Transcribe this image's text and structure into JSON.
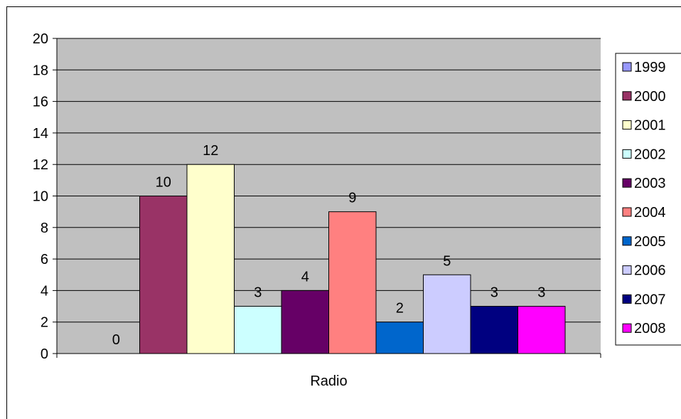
{
  "chart_data": {
    "type": "bar",
    "title": "",
    "xlabel": "",
    "ylabel": "",
    "categories": [
      "Radio"
    ],
    "ylim": [
      0,
      20
    ],
    "yticks": [
      0,
      2,
      4,
      6,
      8,
      10,
      12,
      14,
      16,
      18,
      20
    ],
    "grid": "horizontal",
    "legend_position": "right",
    "plot_background": "#c0c0c0",
    "series": [
      {
        "name": "1999",
        "values": [
          0
        ],
        "color": "#9999ff"
      },
      {
        "name": "2000",
        "values": [
          10
        ],
        "color": "#993366"
      },
      {
        "name": "2001",
        "values": [
          12
        ],
        "color": "#ffffcc"
      },
      {
        "name": "2002",
        "values": [
          3
        ],
        "color": "#ccffff"
      },
      {
        "name": "2003",
        "values": [
          4
        ],
        "color": "#660066"
      },
      {
        "name": "2004",
        "values": [
          9
        ],
        "color": "#ff8080"
      },
      {
        "name": "2005",
        "values": [
          2
        ],
        "color": "#0066cc"
      },
      {
        "name": "2006",
        "values": [
          5
        ],
        "color": "#ccccff"
      },
      {
        "name": "2007",
        "values": [
          3
        ],
        "color": "#000080"
      },
      {
        "name": "2008",
        "values": [
          3
        ],
        "color": "#ff00ff"
      }
    ]
  }
}
